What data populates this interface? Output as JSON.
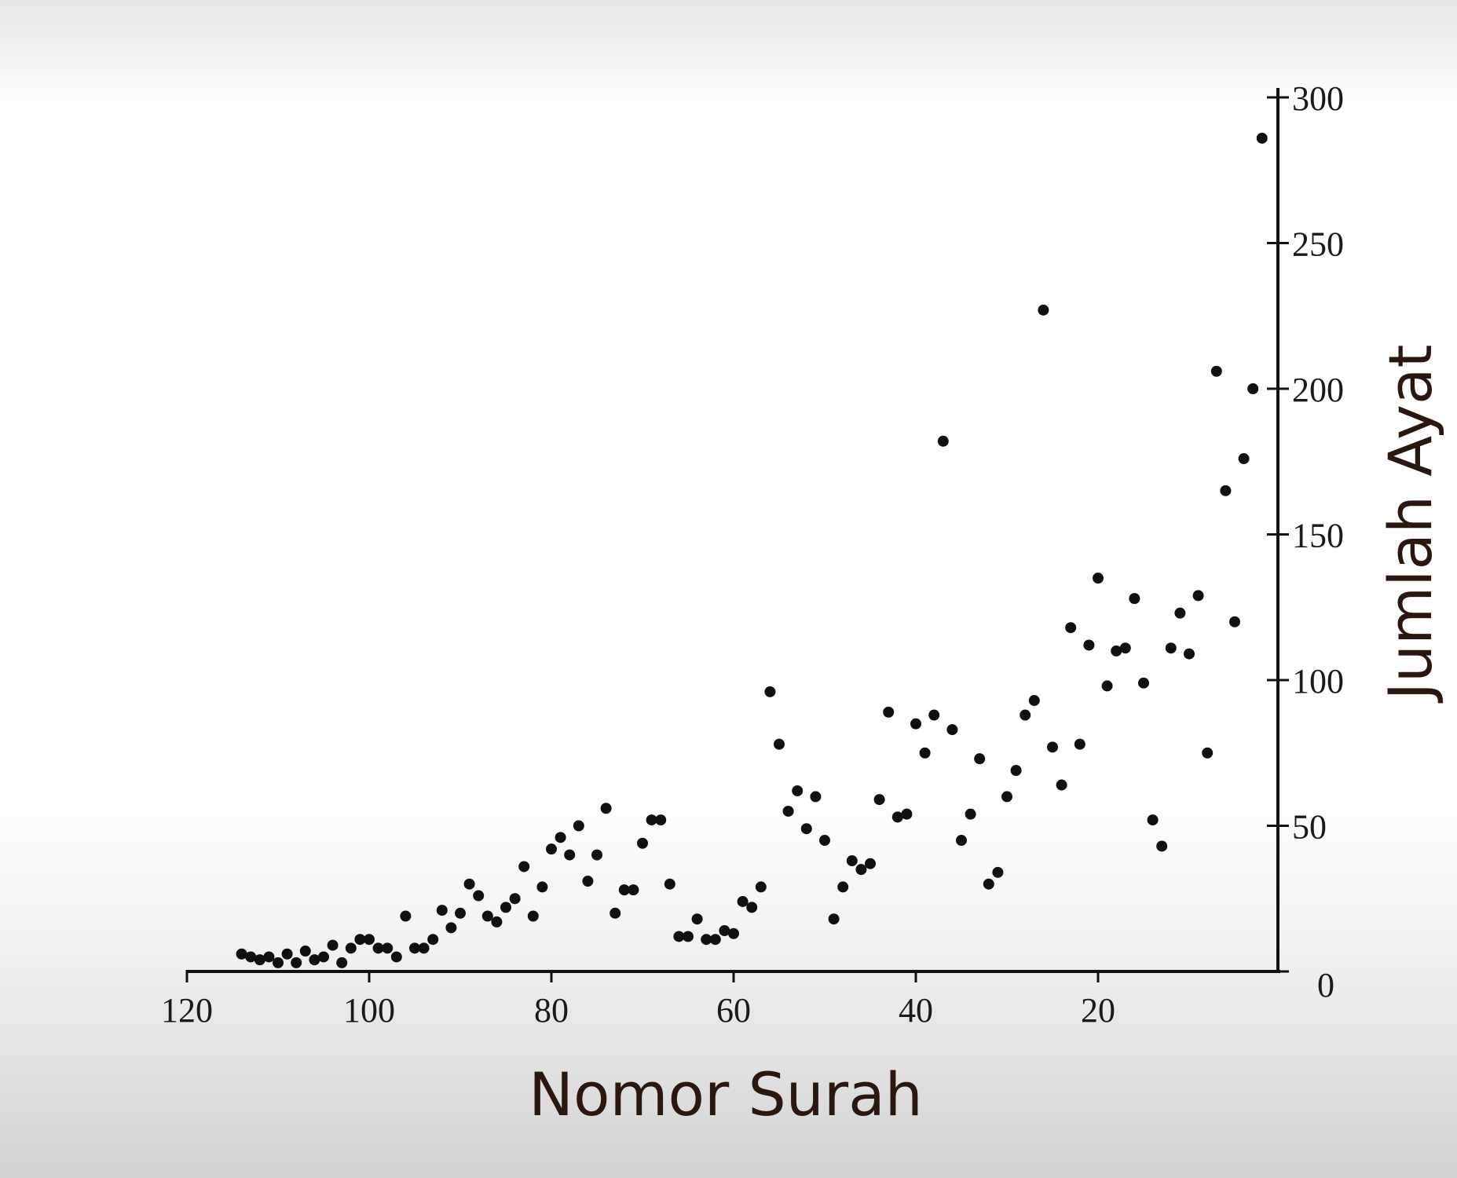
{
  "chart_data": {
    "type": "scatter",
    "xlabel": "Nomor Surah",
    "ylabel": "Jumlah Ayat",
    "xlim": [
      120,
      0
    ],
    "ylim": [
      0,
      300
    ],
    "x_ticks": [
      120,
      100,
      80,
      60,
      40,
      20
    ],
    "x_tick_labels": [
      "120",
      "100",
      "80",
      "60",
      "40",
      "20"
    ],
    "y_ticks": [
      0,
      50,
      100,
      150,
      200,
      250,
      300
    ],
    "y_tick_labels": [
      "0",
      "50",
      "100",
      "150",
      "200",
      "250",
      "300"
    ],
    "y_axis_position": "right",
    "x_axis_reversed": true,
    "grid": false,
    "legend": "none",
    "marker_color": "#111111",
    "points": [
      {
        "x": 2,
        "y": 286
      },
      {
        "x": 3,
        "y": 200
      },
      {
        "x": 4,
        "y": 176
      },
      {
        "x": 5,
        "y": 120
      },
      {
        "x": 6,
        "y": 165
      },
      {
        "x": 7,
        "y": 206
      },
      {
        "x": 8,
        "y": 75
      },
      {
        "x": 9,
        "y": 129
      },
      {
        "x": 10,
        "y": 109
      },
      {
        "x": 11,
        "y": 123
      },
      {
        "x": 12,
        "y": 111
      },
      {
        "x": 13,
        "y": 43
      },
      {
        "x": 14,
        "y": 52
      },
      {
        "x": 15,
        "y": 99
      },
      {
        "x": 16,
        "y": 128
      },
      {
        "x": 17,
        "y": 111
      },
      {
        "x": 18,
        "y": 110
      },
      {
        "x": 19,
        "y": 98
      },
      {
        "x": 20,
        "y": 135
      },
      {
        "x": 21,
        "y": 112
      },
      {
        "x": 22,
        "y": 78
      },
      {
        "x": 23,
        "y": 118
      },
      {
        "x": 24,
        "y": 64
      },
      {
        "x": 25,
        "y": 77
      },
      {
        "x": 26,
        "y": 227
      },
      {
        "x": 27,
        "y": 93
      },
      {
        "x": 28,
        "y": 88
      },
      {
        "x": 29,
        "y": 69
      },
      {
        "x": 30,
        "y": 60
      },
      {
        "x": 31,
        "y": 34
      },
      {
        "x": 32,
        "y": 30
      },
      {
        "x": 33,
        "y": 73
      },
      {
        "x": 34,
        "y": 54
      },
      {
        "x": 35,
        "y": 45
      },
      {
        "x": 36,
        "y": 83
      },
      {
        "x": 37,
        "y": 182
      },
      {
        "x": 38,
        "y": 88
      },
      {
        "x": 39,
        "y": 75
      },
      {
        "x": 40,
        "y": 85
      },
      {
        "x": 41,
        "y": 54
      },
      {
        "x": 42,
        "y": 53
      },
      {
        "x": 43,
        "y": 89
      },
      {
        "x": 44,
        "y": 59
      },
      {
        "x": 45,
        "y": 37
      },
      {
        "x": 46,
        "y": 35
      },
      {
        "x": 47,
        "y": 38
      },
      {
        "x": 48,
        "y": 29
      },
      {
        "x": 49,
        "y": 18
      },
      {
        "x": 50,
        "y": 45
      },
      {
        "x": 51,
        "y": 60
      },
      {
        "x": 52,
        "y": 49
      },
      {
        "x": 53,
        "y": 62
      },
      {
        "x": 54,
        "y": 55
      },
      {
        "x": 55,
        "y": 78
      },
      {
        "x": 56,
        "y": 96
      },
      {
        "x": 57,
        "y": 29
      },
      {
        "x": 58,
        "y": 22
      },
      {
        "x": 59,
        "y": 24
      },
      {
        "x": 60,
        "y": 13
      },
      {
        "x": 61,
        "y": 14
      },
      {
        "x": 62,
        "y": 11
      },
      {
        "x": 63,
        "y": 11
      },
      {
        "x": 64,
        "y": 18
      },
      {
        "x": 65,
        "y": 12
      },
      {
        "x": 66,
        "y": 12
      },
      {
        "x": 67,
        "y": 30
      },
      {
        "x": 68,
        "y": 52
      },
      {
        "x": 69,
        "y": 52
      },
      {
        "x": 70,
        "y": 44
      },
      {
        "x": 71,
        "y": 28
      },
      {
        "x": 72,
        "y": 28
      },
      {
        "x": 73,
        "y": 20
      },
      {
        "x": 74,
        "y": 56
      },
      {
        "x": 75,
        "y": 40
      },
      {
        "x": 76,
        "y": 31
      },
      {
        "x": 77,
        "y": 50
      },
      {
        "x": 78,
        "y": 40
      },
      {
        "x": 79,
        "y": 46
      },
      {
        "x": 80,
        "y": 42
      },
      {
        "x": 81,
        "y": 29
      },
      {
        "x": 82,
        "y": 19
      },
      {
        "x": 83,
        "y": 36
      },
      {
        "x": 84,
        "y": 25
      },
      {
        "x": 85,
        "y": 22
      },
      {
        "x": 86,
        "y": 17
      },
      {
        "x": 87,
        "y": 19
      },
      {
        "x": 88,
        "y": 26
      },
      {
        "x": 89,
        "y": 30
      },
      {
        "x": 90,
        "y": 20
      },
      {
        "x": 91,
        "y": 15
      },
      {
        "x": 92,
        "y": 21
      },
      {
        "x": 93,
        "y": 11
      },
      {
        "x": 94,
        "y": 8
      },
      {
        "x": 95,
        "y": 8
      },
      {
        "x": 96,
        "y": 19
      },
      {
        "x": 97,
        "y": 5
      },
      {
        "x": 98,
        "y": 8
      },
      {
        "x": 99,
        "y": 8
      },
      {
        "x": 100,
        "y": 11
      },
      {
        "x": 101,
        "y": 11
      },
      {
        "x": 102,
        "y": 8
      },
      {
        "x": 103,
        "y": 3
      },
      {
        "x": 104,
        "y": 9
      },
      {
        "x": 105,
        "y": 5
      },
      {
        "x": 106,
        "y": 4
      },
      {
        "x": 107,
        "y": 7
      },
      {
        "x": 108,
        "y": 3
      },
      {
        "x": 109,
        "y": 6
      },
      {
        "x": 110,
        "y": 3
      },
      {
        "x": 111,
        "y": 5
      },
      {
        "x": 112,
        "y": 4
      },
      {
        "x": 113,
        "y": 5
      },
      {
        "x": 114,
        "y": 6
      }
    ]
  }
}
